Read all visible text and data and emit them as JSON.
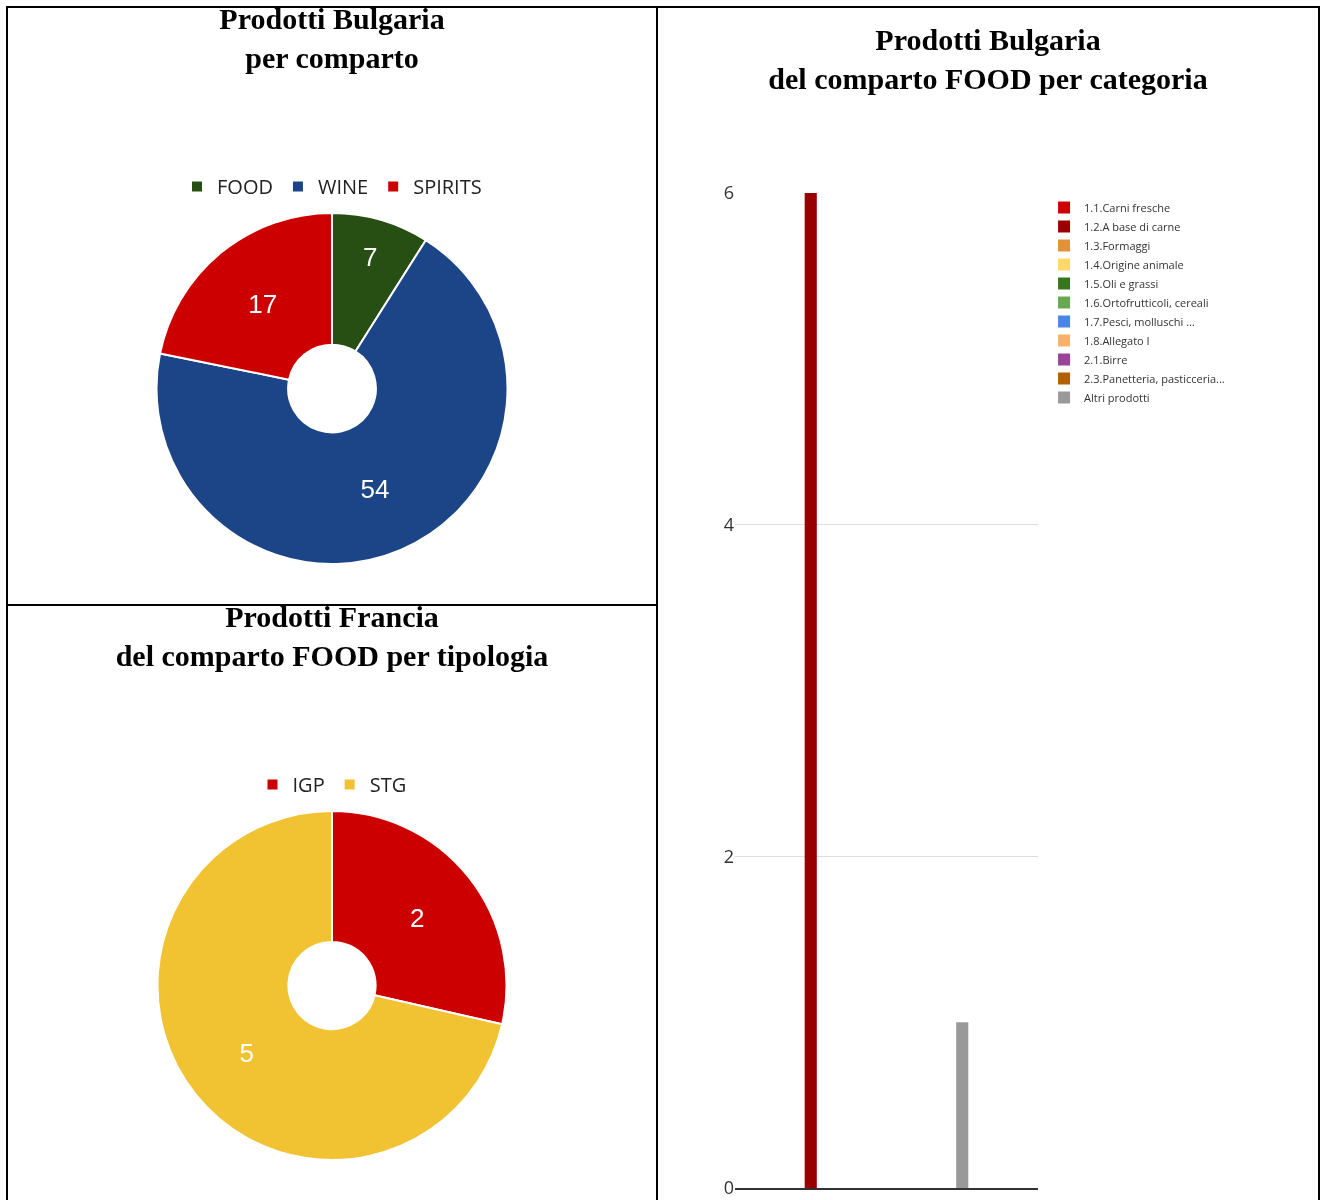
{
  "chart_data": [
    {
      "type": "donut",
      "title": "Prodotti Bulgaria\nper comparto",
      "categories": [
        "FOOD",
        "WINE",
        "SPIRITS"
      ],
      "values": [
        7,
        54,
        17
      ],
      "colors": [
        "#274e13",
        "#1c4587",
        "#cc0000"
      ],
      "data_labels": true,
      "legend": "top"
    },
    {
      "type": "bar",
      "title": "Prodotti Bulgaria\ndel comparto FOOD per categoria",
      "categories": [
        null,
        null
      ],
      "tick_labels": "y",
      "ylim": [
        0,
        6
      ],
      "yticks": [
        0,
        2,
        4,
        6
      ],
      "grid": "y",
      "legend": "right",
      "series": [
        {
          "name": "1.1.Carni fresche",
          "color": "#cc0000",
          "values": [
            null,
            null
          ]
        },
        {
          "name": "1.2.A base di carne",
          "color": "#990000",
          "values": [
            6,
            null
          ]
        },
        {
          "name": "1.3.Formaggi",
          "color": "#e69138",
          "values": [
            null,
            null
          ]
        },
        {
          "name": "1.4.Origine animale",
          "color": "#ffd966",
          "values": [
            null,
            null
          ]
        },
        {
          "name": "1.5.Oli e grassi",
          "color": "#38761d",
          "values": [
            null,
            null
          ]
        },
        {
          "name": "1.6.Ortofrutticoli, cereali",
          "color": "#6aa84f",
          "values": [
            null,
            null
          ]
        },
        {
          "name": "1.7.Pesci, molluschi …",
          "color": "#4a86e8",
          "values": [
            null,
            null
          ]
        },
        {
          "name": "1.8.Allegato I",
          "color": "#f6b26b",
          "values": [
            null,
            null
          ]
        },
        {
          "name": "2.1.Birre",
          "color": "#994499",
          "values": [
            null,
            null
          ]
        },
        {
          "name": "2.3.Panetteria, pasticceria...",
          "color": "#b45f06",
          "values": [
            null,
            null
          ]
        },
        {
          "name": "Altri prodotti",
          "color": "#999999",
          "values": [
            null,
            1
          ]
        }
      ]
    },
    {
      "type": "donut",
      "title": "Prodotti Francia\ndel comparto FOOD per tipologia",
      "categories": [
        "IGP",
        "STG"
      ],
      "values": [
        2,
        5
      ],
      "colors": [
        "#cc0000",
        "#f1c232"
      ],
      "data_labels": true,
      "legend": "top"
    }
  ]
}
